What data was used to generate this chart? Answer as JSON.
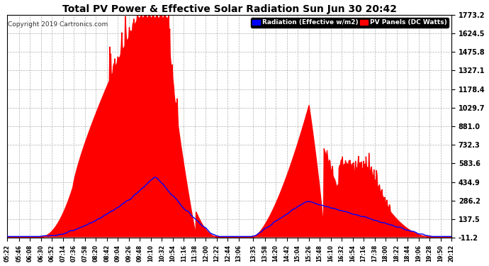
{
  "title": "Total PV Power & Effective Solar Radiation Sun Jun 30 20:42",
  "copyright": "Copyright 2019 Cartronics.com",
  "legend_radiation": "Radiation (Effective w/m2)",
  "legend_pv": "PV Panels (DC Watts)",
  "yticks": [
    1773.2,
    1624.5,
    1475.8,
    1327.1,
    1178.4,
    1029.7,
    881.0,
    732.3,
    583.6,
    434.9,
    286.2,
    137.5,
    -11.2
  ],
  "ymin": -11.2,
  "ymax": 1773.2,
  "bg_color": "#ffffff",
  "plot_bg_color": "#ffffff",
  "grid_color": "#aaaaaa",
  "red_color": "#ff0000",
  "blue_color": "#0000ff",
  "title_color": "#000000",
  "xtick_labels": [
    "05:22",
    "05:46",
    "06:08",
    "06:30",
    "06:52",
    "07:14",
    "07:36",
    "07:58",
    "08:20",
    "08:42",
    "09:04",
    "09:26",
    "09:48",
    "10:10",
    "10:32",
    "10:54",
    "11:16",
    "11:38",
    "12:00",
    "12:22",
    "12:44",
    "13:06",
    "13:35",
    "13:58",
    "14:20",
    "14:42",
    "15:04",
    "15:26",
    "15:48",
    "16:10",
    "16:32",
    "16:54",
    "17:16",
    "17:38",
    "18:00",
    "18:22",
    "18:44",
    "19:06",
    "19:28",
    "19:50",
    "20:12"
  ]
}
